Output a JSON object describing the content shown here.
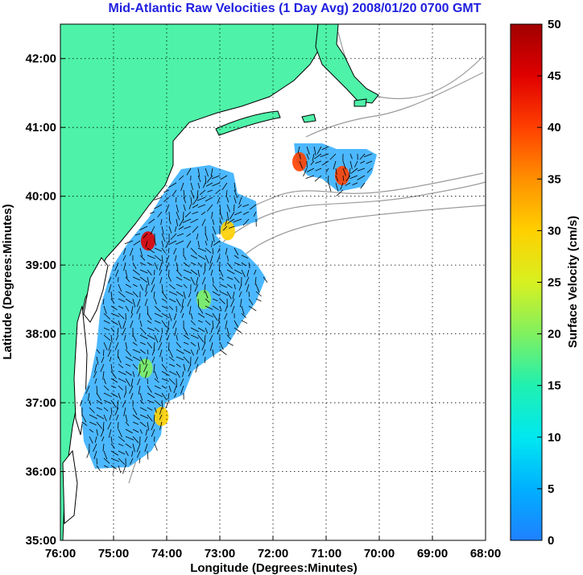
{
  "title": "Mid-Atlantic Raw Velocities (1 Day Avg) 2008/01/20 0700 GMT",
  "x_axis": {
    "label": "Longitude (Degrees:Minutes)",
    "ticks": [
      "76:00",
      "75:00",
      "74:00",
      "73:00",
      "72:00",
      "71:00",
      "70:00",
      "69:00",
      "68:00"
    ],
    "values": [
      -76,
      -75,
      -74,
      -73,
      -72,
      -71,
      -70,
      -69,
      -68
    ]
  },
  "y_axis": {
    "label": "Latitude (Degrees:Minutes)",
    "ticks": [
      "35:00",
      "36:00",
      "37:00",
      "38:00",
      "39:00",
      "40:00",
      "41:00",
      "42:00"
    ],
    "values": [
      35,
      36,
      37,
      38,
      39,
      40,
      41,
      42
    ],
    "range": [
      35,
      42.5
    ]
  },
  "colorbar": {
    "label": "Surface Velocity (cm/s)",
    "ticks": [
      "0",
      "5",
      "10",
      "15",
      "20",
      "25",
      "30",
      "35",
      "40",
      "45",
      "50"
    ],
    "range": [
      0,
      50
    ],
    "colors": [
      "#1f80ff",
      "#00b0ff",
      "#00e8f0",
      "#20f0b0",
      "#80f060",
      "#d8f020",
      "#ffd000",
      "#ff9000",
      "#ff4000",
      "#e00000",
      "#a00000"
    ]
  },
  "colors": {
    "land": "#4ef2a8",
    "coast": "#000000",
    "bathymetry": "#999999",
    "grid": "#000000",
    "arrows": "#000000"
  },
  "chart_data": {
    "type": "heatmap",
    "title": "Mid-Atlantic Raw Velocities (1 Day Avg) 2008/01/20 0700 GMT",
    "xlabel": "Longitude (Degrees:Minutes)",
    "ylabel": "Latitude (Degrees:Minutes)",
    "xlim": [
      -76,
      -68
    ],
    "ylim": [
      35,
      42.5
    ],
    "colorbar_label": "Surface Velocity (cm/s)",
    "colorbar_range": [
      0,
      50
    ],
    "grid": true,
    "hotspots": [
      {
        "lon": -74.35,
        "lat": 39.35,
        "speed": 45
      },
      {
        "lon": -72.85,
        "lat": 39.5,
        "speed": 28
      },
      {
        "lon": -71.5,
        "lat": 40.5,
        "speed": 40
      },
      {
        "lon": -70.7,
        "lat": 40.3,
        "speed": 42
      },
      {
        "lon": -73.3,
        "lat": 38.5,
        "speed": 22
      },
      {
        "lon": -74.4,
        "lat": 37.5,
        "speed": 20
      },
      {
        "lon": -74.1,
        "lat": 36.8,
        "speed": 28
      }
    ]
  }
}
